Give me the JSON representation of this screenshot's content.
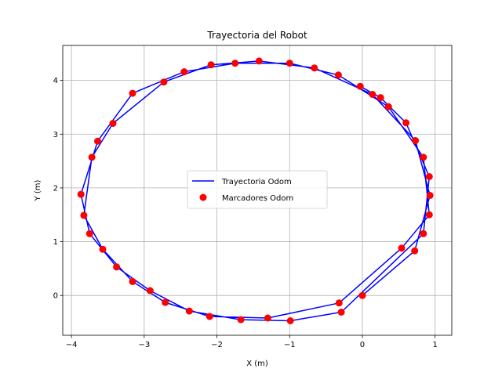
{
  "chart_data": {
    "type": "line",
    "title": "Trayectoria del Robot",
    "xlabel": "X (m)",
    "ylabel": "Y (m)",
    "xlim": [
      -4.12,
      1.23
    ],
    "ylim": [
      -0.74,
      4.65
    ],
    "xticks": [
      -4,
      -3,
      -2,
      -1,
      0,
      1
    ],
    "yticks": [
      0,
      1,
      2,
      3,
      4
    ],
    "grid": true,
    "legend_position": "center",
    "series": [
      {
        "name": "Trayectoria Odom",
        "kind": "line",
        "color": "#0000ff",
        "x": [
          0.0,
          0.72,
          0.93,
          0.73,
          0.14,
          -0.66,
          -1.42,
          -2.08,
          -2.73,
          -3.43,
          -3.72,
          -3.83,
          -3.57,
          -3.16,
          -2.71,
          -2.1,
          -1.3,
          -0.32,
          0.54,
          0.92,
          0.84,
          0.36,
          -0.33,
          -1.0,
          -1.75,
          -2.45,
          -3.16,
          -3.64,
          -3.87,
          -3.75,
          -3.38,
          -2.92,
          -2.38,
          -1.67,
          -0.99,
          -0.29,
          0.84,
          0.92,
          0.6,
          0.25,
          -0.03
        ],
        "y": [
          0.0,
          0.83,
          1.86,
          2.88,
          3.74,
          4.23,
          4.36,
          4.29,
          3.97,
          3.2,
          2.57,
          1.49,
          0.86,
          0.26,
          -0.13,
          -0.39,
          -0.42,
          -0.14,
          0.88,
          1.5,
          2.57,
          3.51,
          4.1,
          4.32,
          4.32,
          4.16,
          3.76,
          2.87,
          1.88,
          1.15,
          0.53,
          0.09,
          -0.29,
          -0.45,
          -0.47,
          -0.31,
          1.15,
          2.21,
          3.21,
          3.68,
          3.89
        ]
      },
      {
        "name": "Marcadores Odom",
        "kind": "scatter",
        "color": "#ff0000",
        "x": [
          0.0,
          0.72,
          0.93,
          0.73,
          0.14,
          -0.66,
          -1.42,
          -2.08,
          -2.73,
          -3.43,
          -3.72,
          -3.83,
          -3.57,
          -3.16,
          -2.71,
          -2.1,
          -1.3,
          -0.32,
          0.54,
          0.92,
          0.84,
          0.36,
          -0.33,
          -1.0,
          -1.75,
          -2.45,
          -3.16,
          -3.64,
          -3.87,
          -3.75,
          -3.38,
          -2.92,
          -2.38,
          -1.67,
          -0.99,
          -0.29,
          0.84,
          0.92,
          0.6,
          0.25,
          -0.03
        ],
        "y": [
          0.0,
          0.83,
          1.86,
          2.88,
          3.74,
          4.23,
          4.36,
          4.29,
          3.97,
          3.2,
          2.57,
          1.49,
          0.86,
          0.26,
          -0.13,
          -0.39,
          -0.42,
          -0.14,
          0.88,
          1.5,
          2.57,
          3.51,
          4.1,
          4.32,
          4.32,
          4.16,
          3.76,
          2.87,
          1.88,
          1.15,
          0.53,
          0.09,
          -0.29,
          -0.45,
          -0.47,
          -0.31,
          1.15,
          2.21,
          3.21,
          3.68,
          3.89
        ]
      }
    ]
  }
}
